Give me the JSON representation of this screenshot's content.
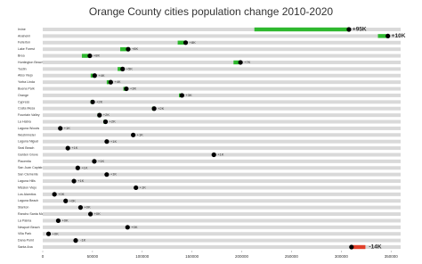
{
  "chart_data": {
    "type": "dot-change",
    "title": "Orange County cities population change 2010-2020",
    "categories": [
      "Irvine",
      "Anaheim",
      "Fullerton",
      "Lake Forest",
      "Brea",
      "Huntington Beach",
      "Tustin",
      "Aliso Viejo",
      "Yorba Linda",
      "Buena Park",
      "Orange",
      "Cypress",
      "Costa Mesa",
      "Fountain Valley",
      "La Habra",
      "Laguna Woods",
      "Westminster",
      "Laguna Niguel",
      "Seal Beach",
      "Garden Grove",
      "Placentia",
      "San Juan Capistrano",
      "San Clemente",
      "Laguna Hills",
      "Mission Viejo",
      "Los Alamitos",
      "Laguna Beach",
      "Stanton",
      "Rancho Santa Margarita",
      "La Palma",
      "Newport Beach",
      "Villa Park",
      "Dana Point",
      "Santa Ana"
    ],
    "values": [
      307670,
      346824,
      143617,
      85858,
      47325,
      198711,
      80276,
      52176,
      68336,
      84034,
      139911,
      50151,
      111918,
      57047,
      63097,
      17644,
      90911,
      64355,
      25232,
      171949,
      51824,
      35196,
      64293,
      31374,
      93653,
      11780,
      23032,
      37962,
      47949,
      15581,
      85239,
      5843,
      33107,
      310227
    ],
    "changes": [
      95000,
      10000,
      8000,
      8000,
      8000,
      7000,
      5000,
      4000,
      4000,
      3000,
      3000,
      2000,
      2000,
      2000,
      2000,
      1000,
      1000,
      1000,
      1000,
      1000,
      1000,
      1000,
      1000,
      1000,
      1000,
      0,
      0,
      0,
      0,
      0,
      0,
      0,
      -1000,
      -14000
    ],
    "value_labels": [
      "+95K",
      "+10K",
      "+8K",
      "+8K",
      "+8K",
      "+7K",
      "+5K",
      "+4K",
      "+4K",
      "+3K",
      "+3K",
      "+2K",
      "+2K",
      "+2K",
      "+2K",
      "+1K",
      "+1K",
      "+1K",
      "+1K",
      "+1K",
      "+1K",
      "+1K",
      "+1K",
      "+1K",
      "+1K",
      "+0K",
      "+0K",
      "+0K",
      "+0K",
      "+0K",
      "+0K",
      "+0K",
      "-1K",
      "-14K"
    ],
    "colors": {
      "increase": "#2eb82e",
      "decrease": "#e0402a",
      "track": "#d9d9d9",
      "dot": "#000000"
    },
    "xlim": [
      0,
      365000
    ],
    "xticks": [
      0,
      50000,
      100000,
      150000,
      200000,
      250000,
      300000,
      350000
    ]
  }
}
